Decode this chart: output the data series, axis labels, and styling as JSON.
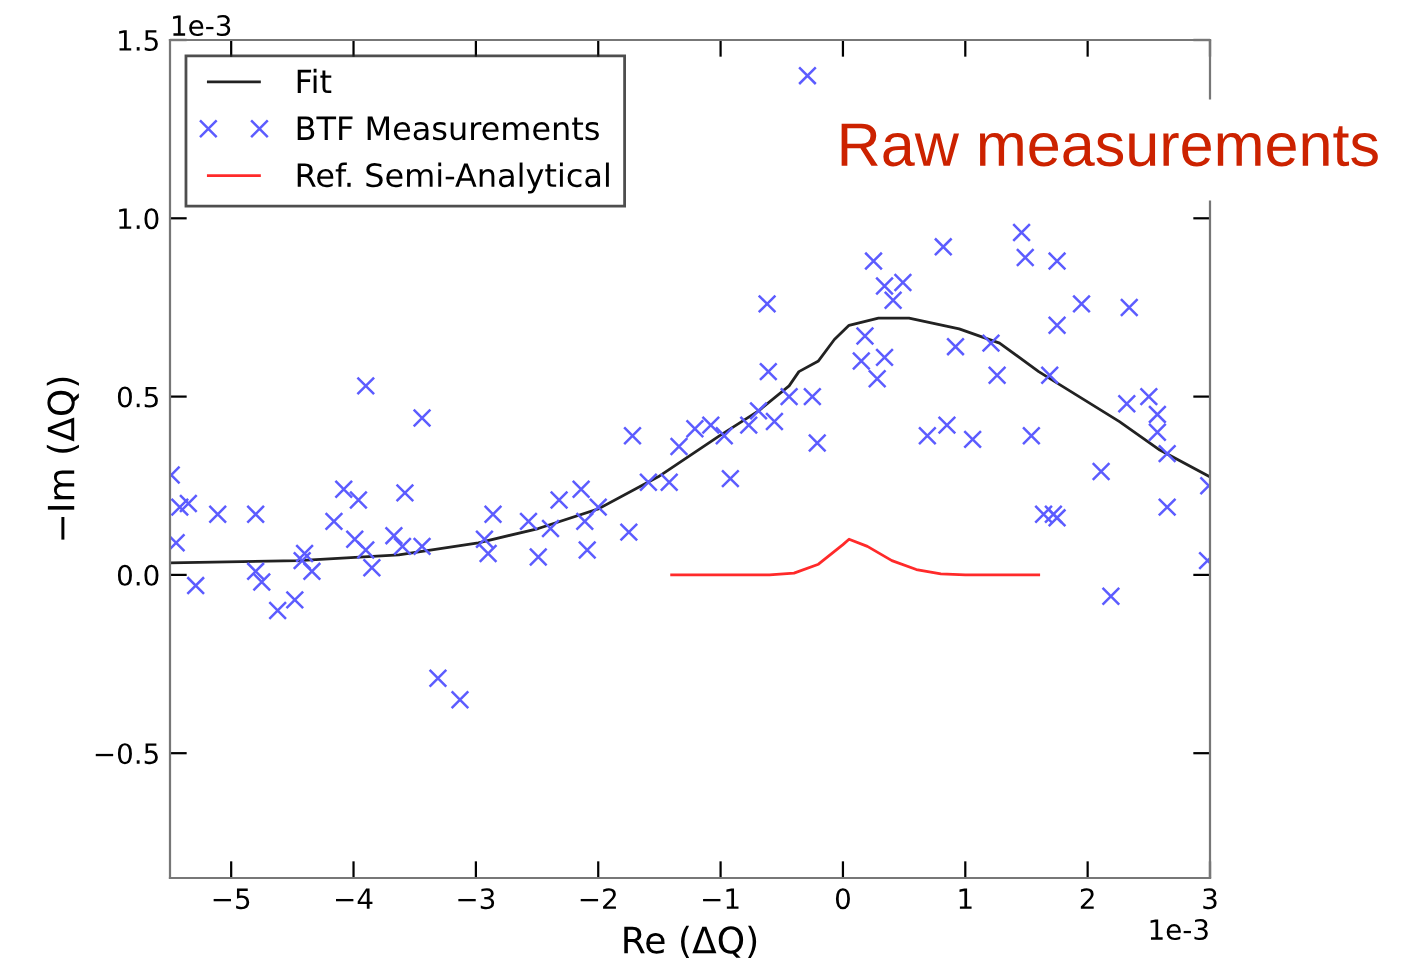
{
  "chart_data": {
    "type": "scatter",
    "title": "Raw measurements",
    "xlabel": "Re (ΔQ)",
    "ylabel": "−Im (ΔQ)",
    "annotations": [
      "1e-3",
      "1e-3"
    ],
    "series": [
      {
        "name": "Fit",
        "type": "line",
        "color": "#222222",
        "marker": "none",
        "line_style": "solid",
        "x": [
          -5.5,
          -4.45,
          -3.63,
          -2.98,
          -2.49,
          -2.0,
          -1.51,
          -1.01,
          -0.69,
          -0.44,
          -0.36,
          -0.2,
          -0.07,
          0.05,
          0.29,
          0.54,
          0.95,
          1.28,
          1.6,
          1.93,
          2.26,
          2.59,
          3.0
        ],
        "values": [
          0.034,
          0.04,
          0.056,
          0.09,
          0.13,
          0.185,
          0.275,
          0.39,
          0.46,
          0.53,
          0.57,
          0.6,
          0.66,
          0.7,
          0.72,
          0.72,
          0.69,
          0.65,
          0.57,
          0.5,
          0.43,
          0.35,
          0.275
        ]
      },
      {
        "name": "BTF Measurements",
        "color": "#5c5cff",
        "marker": "cross",
        "x": [
          -5.49,
          -5.45,
          -5.42,
          -5.35,
          -5.29,
          -5.11,
          -4.8,
          -4.8,
          -4.75,
          -4.62,
          -4.48,
          -4.4,
          -4.34,
          -4.42,
          -4.16,
          -4.08,
          -3.96,
          -3.99,
          -3.9,
          -3.85,
          -3.67,
          -3.6,
          -3.58,
          -3.44,
          -3.31,
          -3.13,
          -2.93,
          -2.9,
          -2.86,
          -2.57,
          -2.49,
          -2.39,
          -2.32,
          -2.14,
          -2.11,
          -2.09,
          -2.0,
          -1.75,
          -1.59,
          -1.42,
          -3.9,
          -3.44,
          -1.72,
          -1.34,
          -1.21,
          -1.08,
          -0.29,
          -0.97,
          -0.77,
          -0.92,
          -0.69,
          -0.62,
          -0.61,
          -0.56,
          -0.44,
          -0.25,
          -0.21,
          0.15,
          0.18,
          0.28,
          0.34,
          0.25,
          0.34,
          0.49,
          0.41,
          0.69,
          0.82,
          0.85,
          0.92,
          1.06,
          1.21,
          1.26,
          1.46,
          1.49,
          1.75,
          1.75,
          1.69,
          1.54,
          1.95,
          2.11,
          2.34,
          2.32,
          2.5,
          2.57,
          2.57,
          2.65,
          2.65,
          1.64,
          1.72,
          1.75,
          2.99,
          2.19,
          2.98
        ],
        "values": [
          0.28,
          0.09,
          0.19,
          0.2,
          -0.03,
          0.17,
          0.17,
          0.01,
          -0.02,
          -0.1,
          -0.07,
          0.06,
          0.01,
          0.04,
          0.15,
          0.24,
          0.21,
          0.1,
          0.07,
          0.02,
          0.11,
          0.08,
          0.23,
          0.08,
          -0.29,
          -0.35,
          0.1,
          0.06,
          0.17,
          0.15,
          0.05,
          0.13,
          0.21,
          0.24,
          0.15,
          0.07,
          0.19,
          0.12,
          0.26,
          0.26,
          0.53,
          0.44,
          0.39,
          0.36,
          0.41,
          0.42,
          1.4,
          0.39,
          0.42,
          0.27,
          0.46,
          0.76,
          0.57,
          0.43,
          0.5,
          0.5,
          0.37,
          0.6,
          0.67,
          0.55,
          0.61,
          0.88,
          0.81,
          0.82,
          0.77,
          0.39,
          0.92,
          0.42,
          0.64,
          0.38,
          0.65,
          0.56,
          0.96,
          0.89,
          0.88,
          0.7,
          0.56,
          0.39,
          0.76,
          0.29,
          0.75,
          0.48,
          0.5,
          0.45,
          0.4,
          0.34,
          0.19,
          0.17,
          0.17,
          0.16,
          0.25,
          -0.06,
          0.04
        ]
      },
      {
        "name": "Ref. Semi-Analytical",
        "type": "line",
        "color": "#ff2a2a",
        "marker": "none",
        "line_style": "solid",
        "x": [
          -1.4,
          -0.6,
          -0.4,
          -0.2,
          0.0,
          0.05,
          0.2,
          0.4,
          0.6,
          0.8,
          1.0,
          1.6
        ],
        "values": [
          0,
          0,
          0.005,
          0.03,
          0.085,
          0.1,
          0.08,
          0.04,
          0.015,
          0.003,
          0,
          0
        ]
      }
    ],
    "xlim": [
      -5.5,
      3
    ],
    "ylim": [
      -0.85,
      1.5
    ],
    "xticks": [
      {
        "value": -5,
        "label": "−5"
      },
      {
        "value": -4,
        "label": "−4"
      },
      {
        "value": -3,
        "label": "−3"
      },
      {
        "value": -2,
        "label": "−2"
      },
      {
        "value": -1,
        "label": "−1"
      },
      0,
      1,
      2,
      3
    ],
    "yticks": [
      {
        "value": -0.5,
        "label": "−0.5"
      },
      {
        "value": 0,
        "label": "0.0"
      },
      {
        "value": 0.5,
        "label": "0.5"
      },
      {
        "value": 1.0,
        "label": "1.0"
      },
      {
        "value": 1.5,
        "label": "1.5"
      }
    ],
    "grid": false,
    "legend": "top left"
  }
}
